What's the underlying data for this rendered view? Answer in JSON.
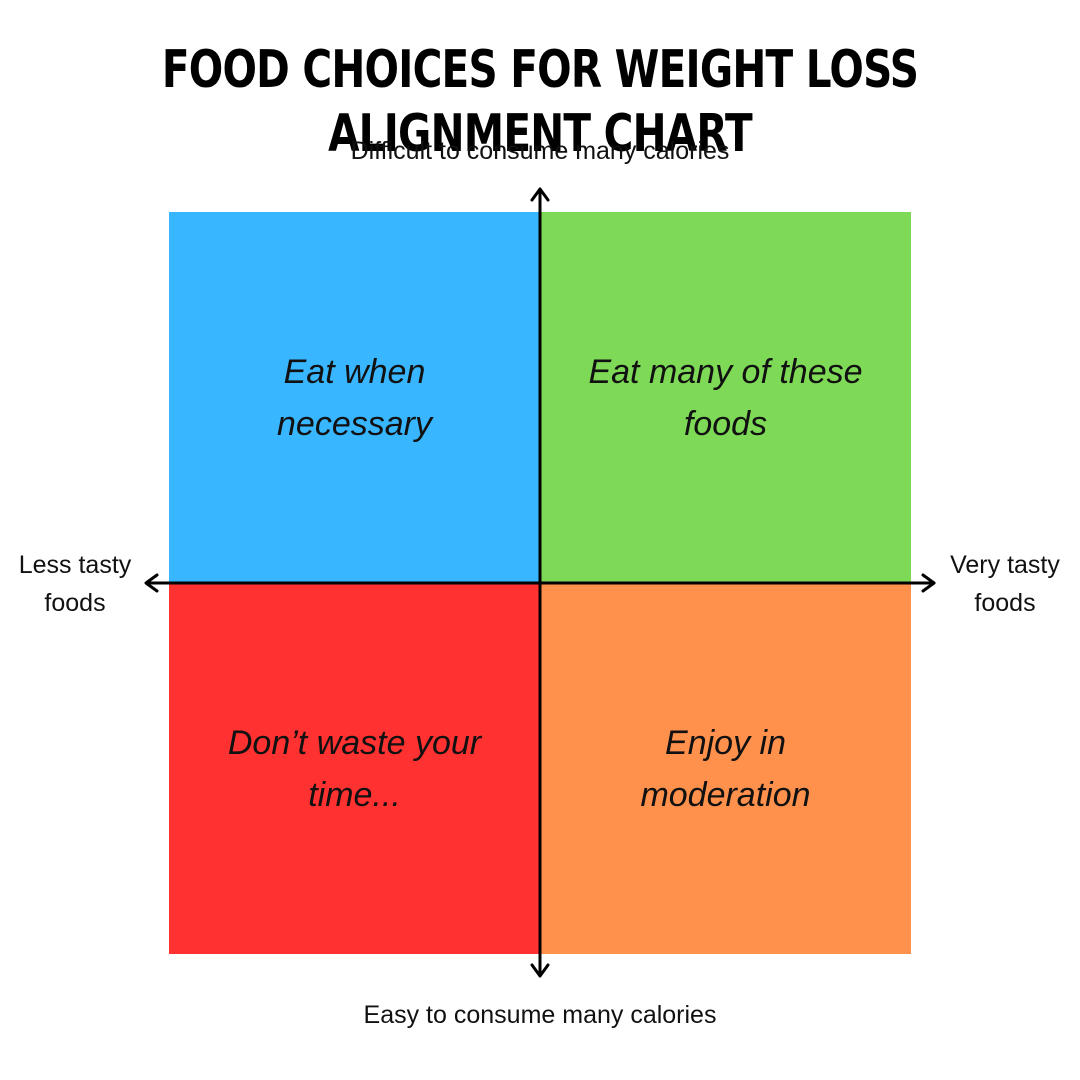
{
  "title": "FOOD CHOICES FOR WEIGHT LOSS ALIGNMENT CHART",
  "axes": {
    "top": "Difficult to consume many calories",
    "bottom": "Easy to consume many calories",
    "left_line1": "Less tasty",
    "left_line2": "foods",
    "right_line1": "Very tasty",
    "right_line2": "foods"
  },
  "quadrants": {
    "top_left": {
      "text": "Eat when necessary",
      "color": "#38b6ff"
    },
    "top_right": {
      "text": "Eat many of these foods",
      "color": "#7ed957"
    },
    "bottom_left": {
      "text": "Don’t waste your time...",
      "color": "#ff3131"
    },
    "bottom_right": {
      "text": "Enjoy in moderation",
      "color": "#ff914d"
    }
  }
}
